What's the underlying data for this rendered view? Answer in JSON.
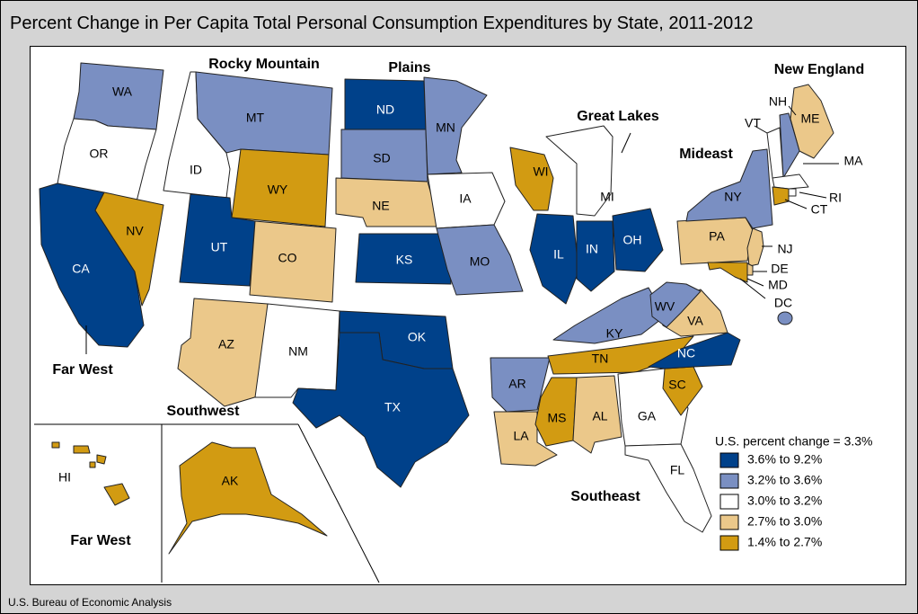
{
  "title": "Percent Change in Per Capita Total Personal Consumption Expenditures by State, 2011-2012",
  "source": "U.S. Bureau of Economic Analysis",
  "legend": {
    "header": "U.S. percent change = 3.3%",
    "bins": [
      {
        "label": "3.6% to 9.2%",
        "color": "#00418a"
      },
      {
        "label": "3.2% to 3.6%",
        "color": "#7a8fc2"
      },
      {
        "label": "3.0% to 3.2%",
        "color": "#ffffff"
      },
      {
        "label": "2.7% to 3.0%",
        "color": "#ebc88a"
      },
      {
        "label": "1.4% to 2.7%",
        "color": "#d29b12"
      }
    ]
  },
  "regions": [
    "Rocky Mountain",
    "Plains",
    "Great Lakes",
    "New England",
    "Mideast",
    "Far West",
    "Southwest",
    "Southeast",
    "Far West"
  ],
  "states": [
    {
      "abbr": "WA",
      "bin": 1
    },
    {
      "abbr": "OR",
      "bin": 2
    },
    {
      "abbr": "CA",
      "bin": 0
    },
    {
      "abbr": "NV",
      "bin": 4
    },
    {
      "abbr": "ID",
      "bin": 2
    },
    {
      "abbr": "MT",
      "bin": 1
    },
    {
      "abbr": "WY",
      "bin": 4
    },
    {
      "abbr": "UT",
      "bin": 0
    },
    {
      "abbr": "CO",
      "bin": 3
    },
    {
      "abbr": "AZ",
      "bin": 3
    },
    {
      "abbr": "NM",
      "bin": 2
    },
    {
      "abbr": "ND",
      "bin": 0
    },
    {
      "abbr": "SD",
      "bin": 1
    },
    {
      "abbr": "NE",
      "bin": 3
    },
    {
      "abbr": "KS",
      "bin": 0
    },
    {
      "abbr": "OK",
      "bin": 0
    },
    {
      "abbr": "TX",
      "bin": 0
    },
    {
      "abbr": "MN",
      "bin": 1
    },
    {
      "abbr": "IA",
      "bin": 2
    },
    {
      "abbr": "MO",
      "bin": 1
    },
    {
      "abbr": "AR",
      "bin": 1
    },
    {
      "abbr": "LA",
      "bin": 3
    },
    {
      "abbr": "WI",
      "bin": 4
    },
    {
      "abbr": "IL",
      "bin": 0
    },
    {
      "abbr": "MI",
      "bin": 2
    },
    {
      "abbr": "IN",
      "bin": 0
    },
    {
      "abbr": "OH",
      "bin": 0
    },
    {
      "abbr": "KY",
      "bin": 1
    },
    {
      "abbr": "TN",
      "bin": 4
    },
    {
      "abbr": "MS",
      "bin": 4
    },
    {
      "abbr": "AL",
      "bin": 3
    },
    {
      "abbr": "GA",
      "bin": 2
    },
    {
      "abbr": "FL",
      "bin": 2
    },
    {
      "abbr": "SC",
      "bin": 4
    },
    {
      "abbr": "NC",
      "bin": 0
    },
    {
      "abbr": "VA",
      "bin": 3
    },
    {
      "abbr": "WV",
      "bin": 1
    },
    {
      "abbr": "PA",
      "bin": 3
    },
    {
      "abbr": "NY",
      "bin": 1
    },
    {
      "abbr": "NJ",
      "bin": 3
    },
    {
      "abbr": "DE",
      "bin": 3
    },
    {
      "abbr": "MD",
      "bin": 4
    },
    {
      "abbr": "DC",
      "bin": 1
    },
    {
      "abbr": "ME",
      "bin": 3
    },
    {
      "abbr": "NH",
      "bin": 1
    },
    {
      "abbr": "VT",
      "bin": 2
    },
    {
      "abbr": "MA",
      "bin": 2
    },
    {
      "abbr": "RI",
      "bin": 2
    },
    {
      "abbr": "CT",
      "bin": 4
    },
    {
      "abbr": "AK",
      "bin": 4
    },
    {
      "abbr": "HI",
      "bin": 4
    }
  ]
}
